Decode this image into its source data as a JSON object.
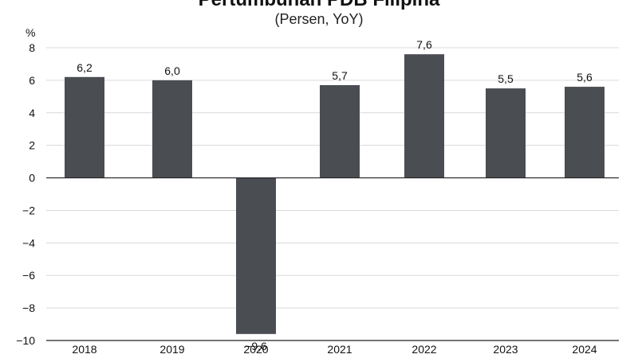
{
  "chart_data": {
    "type": "bar",
    "title": "Pertumbuhan PDB Filipina",
    "subtitle": "(Persen, YoY)",
    "ylabel": "%",
    "categories": [
      "2018",
      "2019",
      "2020",
      "2021",
      "2022",
      "2023",
      "2024"
    ],
    "values": [
      6.2,
      6.0,
      -9.6,
      5.7,
      7.6,
      5.5,
      5.6
    ],
    "value_labels": [
      "6,2",
      "6,0",
      "−9,6",
      "5,7",
      "7,6",
      "5,5",
      "5,6"
    ],
    "ylim": [
      -10,
      8
    ],
    "yticks": [
      8,
      6,
      4,
      2,
      0,
      -2,
      -4,
      -6,
      -8,
      -10
    ],
    "ytick_labels": [
      "8",
      "6",
      "4",
      "2",
      "0",
      "−2",
      "−4",
      "−6",
      "−8",
      "−10"
    ],
    "grid": true,
    "bar_color": "#4a4d52",
    "grid_color": "#d9d9d9",
    "axis_color": "#222222"
  }
}
